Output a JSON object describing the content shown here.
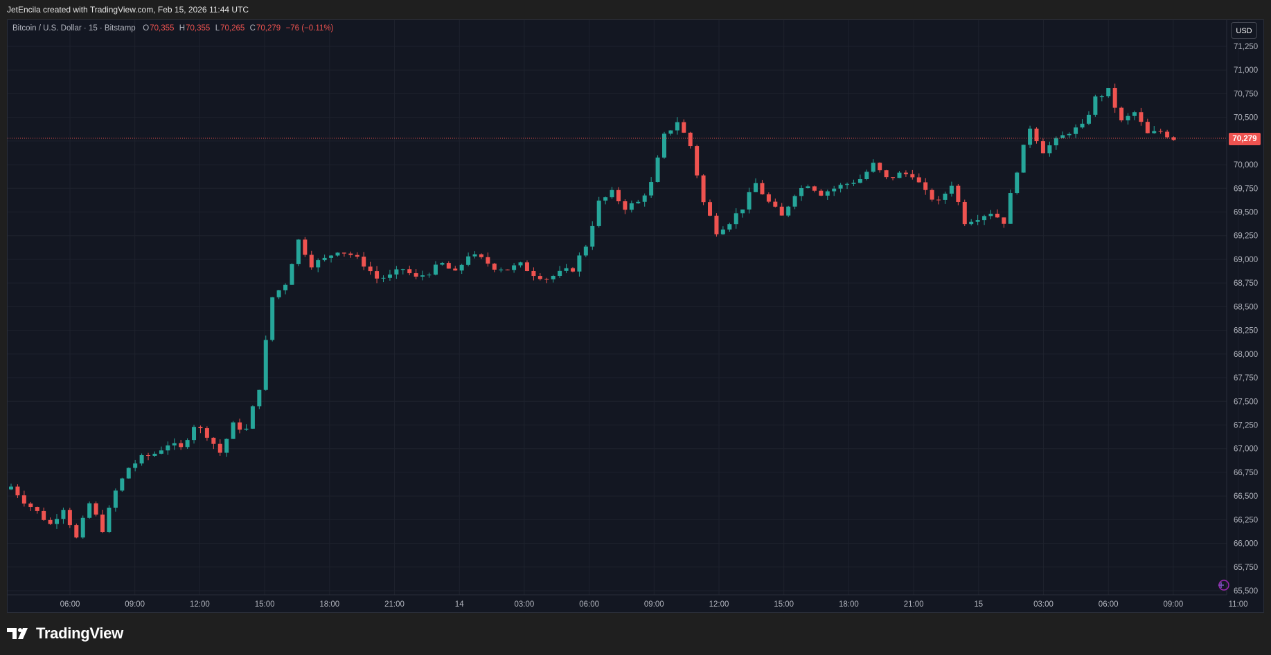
{
  "header": {
    "credit": "JetEncila created with TradingView.com, Feb 15, 2026 11:44 UTC"
  },
  "legend": {
    "symbol": "Bitcoin / U.S. Dollar · 15 · Bitstamp",
    "o_label": "O",
    "o_value": "70,355",
    "h_label": "H",
    "h_value": "70,355",
    "l_label": "L",
    "l_value": "70,265",
    "c_label": "C",
    "c_value": "70,279",
    "change": "−76 (−0.11%)"
  },
  "toolbar": {
    "currency_label": "USD"
  },
  "last_price_label": "70,279",
  "footer": {
    "brand": "TradingView"
  },
  "colors": {
    "background": "#131722",
    "up": "#26a69a",
    "down": "#ef5350",
    "grid": "#1e222d",
    "last_price": "#ef5350"
  },
  "chart_data": {
    "type": "candlestick",
    "symbol": "BTCUSD",
    "interval": "15",
    "exchange": "Bitstamp",
    "currency": "USD",
    "grid": true,
    "ylim": [
      65500,
      71250
    ],
    "y_ticks": [
      65500,
      65750,
      66000,
      66250,
      66500,
      66750,
      67000,
      67250,
      67500,
      67750,
      68000,
      68250,
      68500,
      68750,
      69000,
      69250,
      69500,
      69750,
      70000,
      70250,
      70500,
      70750,
      71000,
      71250
    ],
    "y_tick_labels": [
      "65,500",
      "65,750",
      "66,000",
      "66,250",
      "66,500",
      "66,750",
      "67,000",
      "67,250",
      "67,500",
      "67,750",
      "68,000",
      "68,250",
      "68,500",
      "68,750",
      "69,000",
      "69,250",
      "69,500",
      "69,750",
      "70,000",
      "70,250",
      "70,500",
      "70,750",
      "71,000",
      "71,250"
    ],
    "x_tick_labels": [
      "06:00",
      "09:00",
      "12:00",
      "15:00",
      "18:00",
      "21:00",
      "14",
      "03:00",
      "06:00",
      "09:00",
      "12:00",
      "15:00",
      "18:00",
      "21:00",
      "15",
      "03:00",
      "06:00",
      "09:00",
      "11:00"
    ],
    "last_price": 70279,
    "close_path": [
      [
        0,
        66600
      ],
      [
        2,
        66450
      ],
      [
        4,
        66330
      ],
      [
        6,
        66200
      ],
      [
        8,
        66380
      ],
      [
        10,
        66050
      ],
      [
        12,
        66420
      ],
      [
        14,
        66150
      ],
      [
        16,
        66550
      ],
      [
        18,
        66800
      ],
      [
        20,
        66900
      ],
      [
        22,
        66950
      ],
      [
        24,
        67050
      ],
      [
        26,
        67000
      ],
      [
        28,
        67250
      ],
      [
        30,
        67150
      ],
      [
        32,
        66960
      ],
      [
        34,
        67250
      ],
      [
        36,
        67200
      ],
      [
        38,
        67650
      ],
      [
        40,
        68600
      ],
      [
        42,
        68750
      ],
      [
        44,
        69200
      ],
      [
        46,
        68950
      ],
      [
        48,
        69000
      ],
      [
        50,
        69100
      ],
      [
        52,
        69050
      ],
      [
        54,
        68950
      ],
      [
        56,
        68800
      ],
      [
        58,
        68820
      ],
      [
        60,
        68900
      ],
      [
        62,
        68800
      ],
      [
        64,
        68870
      ],
      [
        66,
        68950
      ],
      [
        68,
        68850
      ],
      [
        70,
        69050
      ],
      [
        72,
        69000
      ],
      [
        74,
        68920
      ],
      [
        76,
        68900
      ],
      [
        78,
        68940
      ],
      [
        80,
        68850
      ],
      [
        82,
        68800
      ],
      [
        84,
        68850
      ],
      [
        86,
        68900
      ],
      [
        88,
        69150
      ],
      [
        90,
        69600
      ],
      [
        92,
        69700
      ],
      [
        94,
        69550
      ],
      [
        96,
        69600
      ],
      [
        98,
        69800
      ],
      [
        100,
        70300
      ],
      [
        102,
        70460
      ],
      [
        104,
        70200
      ],
      [
        106,
        69600
      ],
      [
        108,
        69300
      ],
      [
        110,
        69400
      ],
      [
        112,
        69550
      ],
      [
        114,
        69800
      ],
      [
        116,
        69600
      ],
      [
        118,
        69450
      ],
      [
        120,
        69700
      ],
      [
        122,
        69800
      ],
      [
        124,
        69700
      ],
      [
        126,
        69750
      ],
      [
        128,
        69800
      ],
      [
        130,
        69850
      ],
      [
        132,
        70000
      ],
      [
        134,
        69850
      ],
      [
        136,
        69900
      ],
      [
        138,
        69900
      ],
      [
        140,
        69700
      ],
      [
        142,
        69600
      ],
      [
        144,
        69800
      ],
      [
        146,
        69400
      ],
      [
        148,
        69450
      ],
      [
        150,
        69500
      ],
      [
        152,
        69400
      ],
      [
        154,
        69950
      ],
      [
        156,
        70400
      ],
      [
        158,
        70150
      ],
      [
        160,
        70250
      ],
      [
        162,
        70350
      ],
      [
        164,
        70400
      ],
      [
        166,
        70700
      ],
      [
        168,
        70780
      ],
      [
        170,
        70450
      ],
      [
        172,
        70550
      ],
      [
        174,
        70320
      ],
      [
        176,
        70350
      ],
      [
        178,
        70279
      ]
    ]
  }
}
